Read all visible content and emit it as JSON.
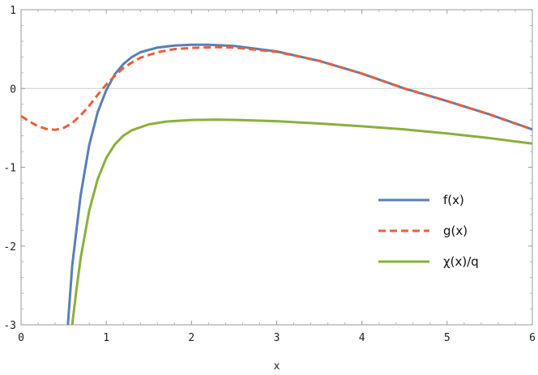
{
  "chart_data": {
    "type": "line",
    "title": "",
    "xlabel": "x",
    "ylabel": "",
    "xlim": [
      0,
      6
    ],
    "ylim": [
      -3,
      1
    ],
    "xticks": [
      "0",
      "1",
      "2",
      "3",
      "4",
      "5",
      "6"
    ],
    "yticks": [
      "1",
      "0",
      "-1",
      "-2",
      "-3"
    ],
    "grid": false,
    "reference_line_y": 0,
    "legend_position": "right",
    "series": [
      {
        "name": "f(x)",
        "color": "#5b7fb5",
        "dash": "solid",
        "points": [
          [
            0.55,
            -3.0
          ],
          [
            0.6,
            -2.25
          ],
          [
            0.7,
            -1.35
          ],
          [
            0.8,
            -0.72
          ],
          [
            0.9,
            -0.3
          ],
          [
            1.0,
            -0.02
          ],
          [
            1.1,
            0.18
          ],
          [
            1.2,
            0.31
          ],
          [
            1.3,
            0.4
          ],
          [
            1.4,
            0.46
          ],
          [
            1.6,
            0.52
          ],
          [
            1.8,
            0.545
          ],
          [
            2.0,
            0.555
          ],
          [
            2.2,
            0.555
          ],
          [
            2.5,
            0.54
          ],
          [
            3.0,
            0.47
          ],
          [
            3.5,
            0.35
          ],
          [
            4.0,
            0.19
          ],
          [
            4.5,
            0.0
          ],
          [
            5.0,
            -0.16
          ],
          [
            5.5,
            -0.33
          ],
          [
            6.0,
            -0.52
          ]
        ]
      },
      {
        "name": "g(x)",
        "color": "#e8603a",
        "dash": "dashed",
        "points": [
          [
            0.0,
            -0.35
          ],
          [
            0.1,
            -0.42
          ],
          [
            0.2,
            -0.48
          ],
          [
            0.3,
            -0.515
          ],
          [
            0.4,
            -0.525
          ],
          [
            0.5,
            -0.5
          ],
          [
            0.6,
            -0.44
          ],
          [
            0.7,
            -0.34
          ],
          [
            0.8,
            -0.22
          ],
          [
            0.9,
            -0.08
          ],
          [
            1.0,
            0.05
          ],
          [
            1.1,
            0.16
          ],
          [
            1.2,
            0.26
          ],
          [
            1.3,
            0.33
          ],
          [
            1.4,
            0.39
          ],
          [
            1.6,
            0.46
          ],
          [
            1.8,
            0.5
          ],
          [
            2.0,
            0.515
          ],
          [
            2.3,
            0.525
          ],
          [
            2.5,
            0.52
          ],
          [
            3.0,
            0.465
          ],
          [
            3.5,
            0.35
          ],
          [
            4.0,
            0.19
          ],
          [
            4.5,
            0.0
          ],
          [
            5.0,
            -0.16
          ],
          [
            5.5,
            -0.33
          ],
          [
            6.0,
            -0.52
          ]
        ]
      },
      {
        "name": "χ(x)/q",
        "color": "#8ab03c",
        "dash": "solid",
        "points": [
          [
            0.6,
            -3.0
          ],
          [
            0.65,
            -2.55
          ],
          [
            0.7,
            -2.15
          ],
          [
            0.8,
            -1.55
          ],
          [
            0.9,
            -1.15
          ],
          [
            1.0,
            -0.88
          ],
          [
            1.1,
            -0.71
          ],
          [
            1.2,
            -0.6
          ],
          [
            1.3,
            -0.53
          ],
          [
            1.5,
            -0.455
          ],
          [
            1.7,
            -0.42
          ],
          [
            2.0,
            -0.4
          ],
          [
            2.3,
            -0.395
          ],
          [
            2.5,
            -0.398
          ],
          [
            3.0,
            -0.415
          ],
          [
            3.5,
            -0.445
          ],
          [
            4.0,
            -0.48
          ],
          [
            4.5,
            -0.52
          ],
          [
            5.0,
            -0.57
          ],
          [
            5.5,
            -0.63
          ],
          [
            6.0,
            -0.7
          ]
        ]
      }
    ]
  }
}
